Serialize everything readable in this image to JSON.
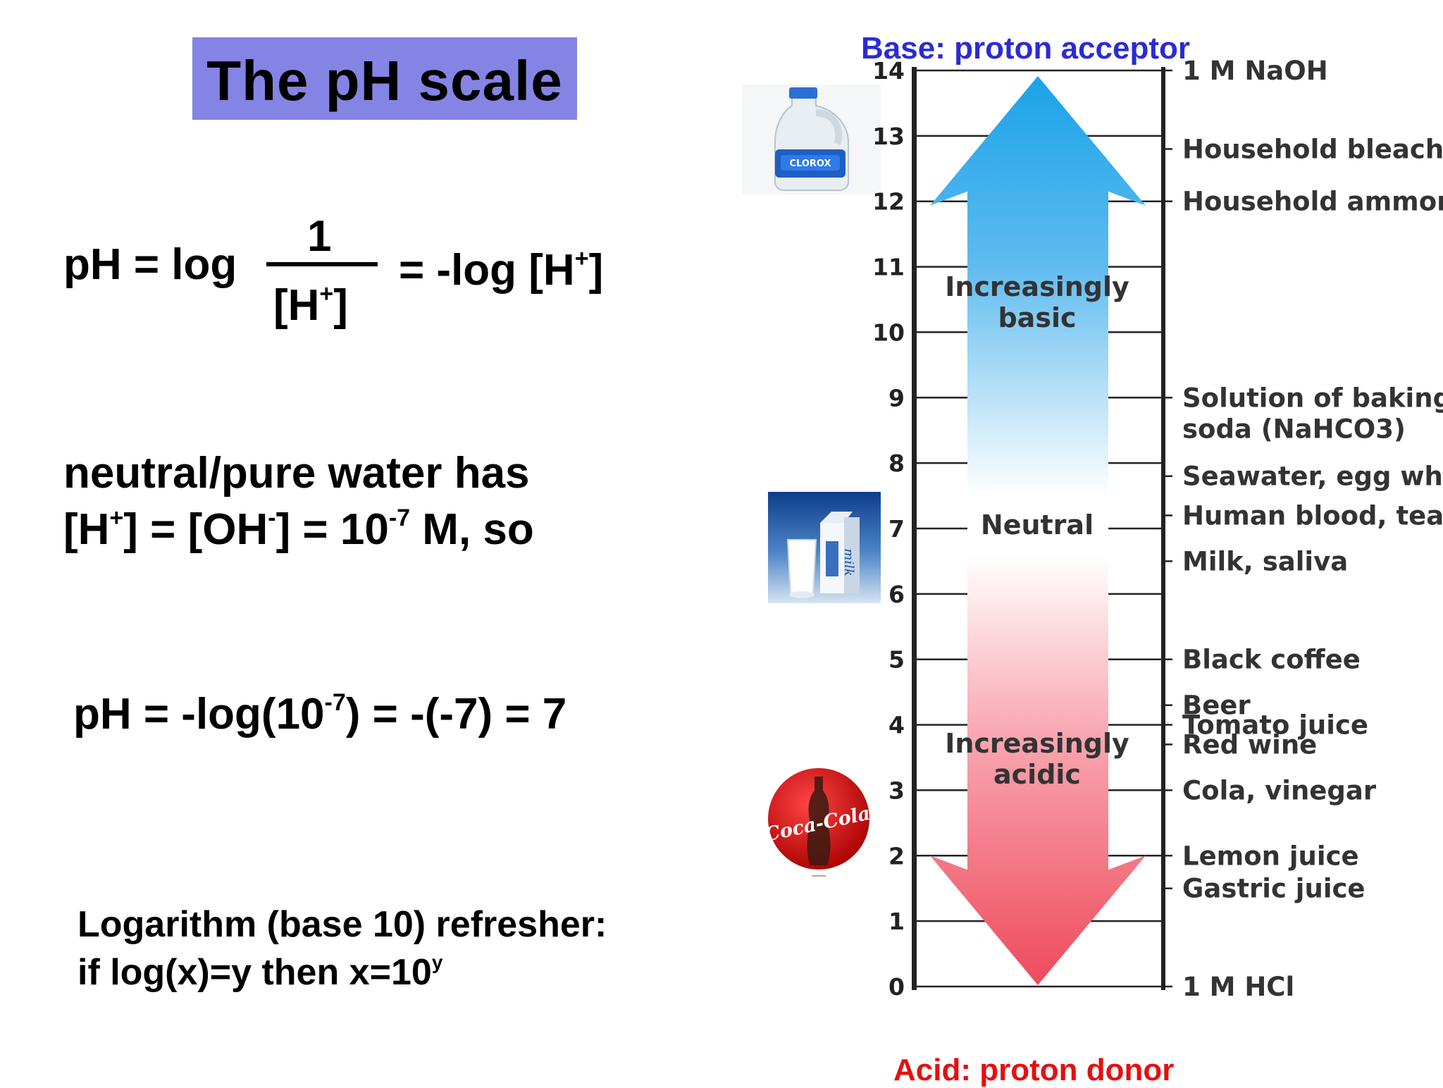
{
  "title": "The pH scale",
  "formula": {
    "lhs": "pH = log",
    "numerator": "1",
    "denominator": "[H",
    "denominator_sup": "+",
    "denominator_close": "]",
    "rhs": "= -log [H",
    "rhs_sup": "+",
    "rhs_close": "]"
  },
  "neutral": {
    "line1": "neutral/pure water has",
    "line2_a": "[H",
    "line2_sup1": "+",
    "line2_b": "] = [OH",
    "line2_sup2": "-",
    "line2_c": "] = 10",
    "line2_sup3": "-7",
    "line2_d": " M, so"
  },
  "ph_calc": {
    "a": "pH = -log(10",
    "sup": "-7",
    "b": ") = -(-7) = 7"
  },
  "log_refresher": {
    "line1": "Logarithm (base 10) refresher:",
    "line2": "if log(x)=y then x=10",
    "line2_sup": "y"
  },
  "diagram": {
    "base_caption": "Base: proton acceptor",
    "acid_caption": "Acid: proton donor",
    "basic_label": [
      "Increasingly",
      "basic"
    ],
    "neutral_label": "Neutral",
    "acidic_label": [
      "Increasingly",
      "acidic"
    ],
    "ticks": [
      0,
      1,
      2,
      3,
      4,
      5,
      6,
      7,
      8,
      9,
      10,
      11,
      12,
      13,
      14
    ],
    "substances": [
      {
        "ph": 14,
        "lines": [
          "1 M NaOH"
        ]
      },
      {
        "ph": 12.8,
        "lines": [
          "Household bleach"
        ]
      },
      {
        "ph": 12,
        "lines": [
          "Household ammonia"
        ]
      },
      {
        "ph": 9,
        "lines": [
          "Solution of baking",
          "soda (NaHCO3)"
        ]
      },
      {
        "ph": 7.8,
        "lines": [
          "Seawater, egg white"
        ]
      },
      {
        "ph": 7.2,
        "lines": [
          "Human blood, tears"
        ]
      },
      {
        "ph": 6.5,
        "lines": [
          "Milk, saliva"
        ]
      },
      {
        "ph": 5,
        "lines": [
          "Black coffee"
        ]
      },
      {
        "ph": 4.3,
        "lines": [
          "Beer"
        ]
      },
      {
        "ph": 4,
        "lines": [
          "Tomato juice"
        ]
      },
      {
        "ph": 3.7,
        "lines": [
          "Red wine"
        ]
      },
      {
        "ph": 3,
        "lines": [
          "Cola, vinegar"
        ]
      },
      {
        "ph": 2,
        "lines": [
          "Lemon juice"
        ]
      },
      {
        "ph": 1.5,
        "lines": [
          "Gastric juice"
        ]
      },
      {
        "ph": 0,
        "lines": [
          "1 M HCl"
        ]
      }
    ],
    "images": {
      "bleach": "CLOROX",
      "milk": "milk",
      "cola": "Coca-Cola"
    },
    "colors": {
      "base_arrow": "#1aa3e8",
      "acid_arrow": "#ee4a5c"
    }
  }
}
